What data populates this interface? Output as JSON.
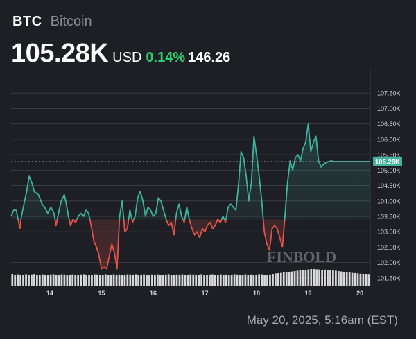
{
  "header": {
    "ticker": "BTC",
    "name": "Bitcoin",
    "price": "105.28K",
    "currency": "USD",
    "change_pct": "0.14%",
    "change_abs": "146.26"
  },
  "timestamp": "May 20, 2025, 5:16am (EST)",
  "watermark": "FINBOLD",
  "colors": {
    "background": "#1e1f24",
    "up": "#3fb39f",
    "down": "#e5534b",
    "change_positive": "#2ecc71",
    "grid": "#3a3c44",
    "axis_text": "#d5d6da",
    "volume": "#d9d9d9",
    "current_price_tag": "#3fb39f"
  },
  "chart_data": {
    "type": "line",
    "title": "",
    "xlabel": "",
    "ylabel": "",
    "ylim": [
      101250,
      108000
    ],
    "xlim": [
      13.25,
      20.2
    ],
    "baseline": 103400,
    "current_price": 105280,
    "current_price_label": "105.28K",
    "y_ticks": [
      101500,
      102000,
      102500,
      103000,
      103500,
      104000,
      104500,
      105000,
      105500,
      106000,
      106500,
      107000,
      107500
    ],
    "y_tick_labels": [
      "101.50K",
      "102.00K",
      "102.50K",
      "103.00K",
      "103.50K",
      "104.00K",
      "104.50K",
      "105.00K",
      "105.50K",
      "106.00K",
      "106.50K",
      "107.00K",
      "107.50K"
    ],
    "x_ticks": [
      14,
      15,
      16,
      17,
      18,
      19,
      20
    ],
    "x_tick_labels": [
      "14",
      "15",
      "16",
      "17",
      "18",
      "19",
      "20"
    ],
    "grid": true,
    "series": [
      {
        "x": [
          13.25,
          13.3,
          13.35,
          13.42,
          13.45,
          13.5,
          13.55,
          13.6,
          13.65,
          13.7,
          13.78,
          13.85,
          13.9,
          13.96,
          14.02,
          14.08,
          14.12,
          14.18,
          14.22,
          14.28,
          14.32,
          14.36,
          14.4,
          14.45,
          14.5,
          14.55,
          14.6,
          14.65,
          14.7,
          14.75,
          14.8,
          14.85,
          14.9,
          14.94,
          15.0,
          15.05,
          15.1,
          15.15,
          15.2,
          15.25,
          15.3,
          15.35,
          15.4,
          15.45,
          15.5,
          15.55,
          15.6,
          15.65,
          15.7,
          15.75,
          15.8,
          15.85,
          15.9,
          15.95,
          16.0,
          16.05,
          16.1,
          16.15,
          16.2,
          16.25,
          16.3,
          16.35,
          16.4,
          16.45,
          16.5,
          16.55,
          16.6,
          16.65,
          16.7,
          16.75,
          16.8,
          16.85,
          16.9,
          16.95,
          17.0,
          17.05,
          17.1,
          17.15,
          17.2,
          17.25,
          17.3,
          17.35,
          17.4,
          17.45,
          17.5,
          17.55,
          17.6,
          17.65,
          17.7,
          17.75,
          17.8,
          17.85,
          17.9,
          17.95,
          18.0,
          18.05,
          18.1,
          18.15,
          18.2,
          18.25,
          18.3,
          18.35,
          18.4,
          18.45,
          18.5,
          18.55,
          18.6,
          18.65,
          18.7,
          18.75,
          18.8,
          18.85,
          18.9,
          18.95,
          19.0,
          19.05,
          19.1,
          19.15,
          19.2,
          19.25,
          19.3,
          19.35,
          19.4,
          19.45,
          19.5,
          19.55,
          19.6,
          19.65,
          19.7,
          19.75,
          19.8,
          19.85,
          19.9,
          19.95,
          20.0,
          20.05,
          20.1,
          20.15,
          20.2
        ],
        "y": [
          103500,
          103700,
          103700,
          103100,
          103500,
          103900,
          104300,
          104800,
          104600,
          104300,
          104200,
          103900,
          103800,
          103600,
          103800,
          103600,
          103200,
          103700,
          104000,
          104200,
          103900,
          103500,
          103200,
          103400,
          103300,
          103500,
          103600,
          103500,
          103700,
          103600,
          103200,
          102700,
          102500,
          102300,
          101800,
          101850,
          101800,
          102200,
          102600,
          102300,
          101800,
          103500,
          104000,
          103000,
          103100,
          103700,
          103300,
          103500,
          104100,
          104300,
          104000,
          103500,
          103800,
          103700,
          103500,
          103600,
          104100,
          104000,
          103700,
          103400,
          103200,
          103300,
          102900,
          103600,
          103900,
          103500,
          103300,
          103800,
          103400,
          103100,
          102900,
          103000,
          102800,
          103100,
          103000,
          103200,
          103300,
          103100,
          103200,
          103400,
          103300,
          103500,
          103300,
          103800,
          103900,
          103800,
          103700,
          104500,
          105600,
          105400,
          104800,
          104000,
          104600,
          106100,
          105500,
          104800,
          104000,
          103000,
          102600,
          102400,
          103100,
          103200,
          103100,
          102800,
          102500,
          103500,
          104600,
          105300,
          105000,
          105400,
          105500,
          105300,
          105700,
          105900,
          106500,
          105600,
          105900,
          106100,
          105300,
          105100,
          105200,
          105250,
          105280,
          105300,
          105280,
          105280,
          105280,
          105280,
          105280,
          105280,
          105280,
          105280,
          105280,
          105280,
          105280,
          105280,
          105280,
          105280,
          105280
        ]
      }
    ],
    "volume": [
      0.85,
      0.8,
      0.82,
      0.78,
      0.8,
      0.83,
      0.79,
      0.81,
      0.84,
      0.8,
      0.78,
      0.82,
      0.8,
      0.79,
      0.81,
      0.83,
      0.8,
      0.78,
      0.82,
      0.81,
      0.79,
      0.8,
      0.82,
      0.8,
      0.78,
      0.81,
      0.83,
      0.8,
      0.79,
      0.8,
      0.82,
      0.81,
      0.78,
      0.8,
      0.83,
      0.8,
      0.79,
      0.82,
      0.8,
      0.81,
      0.78,
      0.8,
      0.82,
      0.81,
      0.79,
      0.83,
      0.8,
      0.78,
      0.82,
      0.8,
      0.79,
      0.81,
      0.8,
      0.82,
      0.78,
      0.8,
      0.81,
      0.83,
      0.8,
      0.79,
      0.81,
      0.8,
      0.82,
      0.78,
      0.8,
      0.82,
      0.81,
      0.79,
      0.8,
      0.83,
      0.8,
      0.78,
      0.81,
      0.82,
      0.8,
      0.79,
      0.82,
      0.8,
      0.81,
      0.78,
      0.8,
      0.83,
      0.81,
      0.79,
      0.8,
      0.82,
      0.8,
      0.81,
      0.79,
      0.8,
      0.83,
      0.82,
      0.79,
      0.8,
      0.81,
      0.85,
      0.88,
      0.9,
      0.92,
      0.95,
      0.98,
      1.0,
      1.02,
      1.05,
      1.08,
      1.1,
      1.12,
      1.15,
      1.17,
      1.2,
      1.2,
      1.18,
      1.17,
      1.15,
      1.16,
      1.14,
      1.12,
      1.1,
      1.08,
      1.05,
      1.02,
      1.0,
      0.98,
      0.95,
      0.92,
      0.9,
      0.88,
      0.86,
      0.85,
      0.85,
      0.84
    ]
  }
}
